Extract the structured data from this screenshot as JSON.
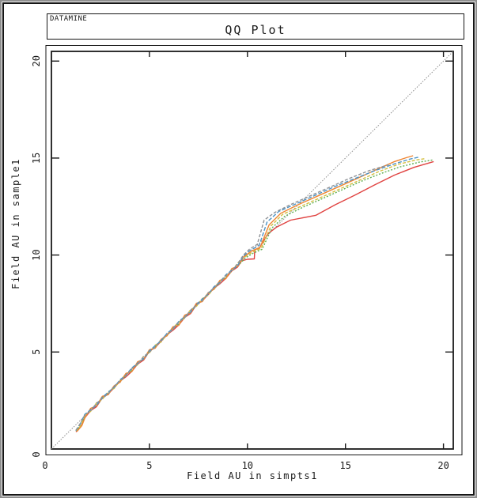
{
  "window": {
    "outer_border_color": "#8f8f8f",
    "inner_border_color": "#161616",
    "background": "#ffffff"
  },
  "header": {
    "app_label": "DATAMINE",
    "title": "QQ Plot"
  },
  "chart_data": {
    "type": "line",
    "title": "QQ Plot",
    "xlabel": "Field AU in simpts1",
    "ylabel": "Field AU in sample1",
    "xlim": [
      0,
      20.5
    ],
    "ylim": [
      0,
      20.5
    ],
    "grid": false,
    "legend": "none",
    "axis_color": "#1a1a1a",
    "frame_color": "#161616",
    "x_ticks": {
      "values": [
        0,
        5,
        10,
        15,
        20
      ],
      "labels": [
        "0",
        "5",
        "10",
        "15",
        "20"
      ]
    },
    "y_ticks": {
      "values": [
        0,
        5,
        10,
        15,
        20
      ],
      "labels": [
        "0",
        "5",
        "10",
        "15",
        "20"
      ]
    },
    "reference_line": {
      "name": "y-equals-x-reference",
      "color": "#8c8c8c",
      "dash": "1.5 1.8",
      "width": 1,
      "points": [
        [
          0,
          0
        ],
        [
          20.5,
          20.5
        ]
      ]
    },
    "series": [
      {
        "name": "series-red",
        "color": "#e04341",
        "dash": "",
        "width": 1.4,
        "points": [
          [
            1.25,
            0.88
          ],
          [
            1.5,
            1.15
          ],
          [
            1.7,
            1.6
          ],
          [
            2.0,
            1.98
          ],
          [
            2.3,
            2.18
          ],
          [
            2.6,
            2.64
          ],
          [
            2.9,
            2.84
          ],
          [
            3.2,
            3.16
          ],
          [
            3.5,
            3.5
          ],
          [
            3.8,
            3.72
          ],
          [
            4.1,
            4.0
          ],
          [
            4.4,
            4.38
          ],
          [
            4.7,
            4.58
          ],
          [
            5.0,
            5.04
          ],
          [
            5.3,
            5.24
          ],
          [
            5.6,
            5.56
          ],
          [
            5.9,
            5.9
          ],
          [
            6.2,
            6.12
          ],
          [
            6.5,
            6.4
          ],
          [
            6.8,
            6.78
          ],
          [
            7.1,
            6.98
          ],
          [
            7.4,
            7.44
          ],
          [
            7.7,
            7.64
          ],
          [
            8.0,
            7.96
          ],
          [
            8.3,
            8.3
          ],
          [
            8.6,
            8.52
          ],
          [
            8.9,
            8.8
          ],
          [
            9.2,
            9.18
          ],
          [
            9.5,
            9.38
          ],
          [
            9.7,
            9.7
          ],
          [
            10.0,
            9.78
          ],
          [
            10.35,
            9.8
          ],
          [
            10.37,
            10.28
          ],
          [
            10.6,
            10.35
          ],
          [
            11.05,
            11.1
          ],
          [
            11.5,
            11.45
          ],
          [
            12.2,
            11.8
          ],
          [
            13.5,
            12.05
          ],
          [
            14.5,
            12.6
          ],
          [
            15.5,
            13.1
          ],
          [
            16.5,
            13.62
          ],
          [
            17.5,
            14.12
          ],
          [
            18.5,
            14.52
          ],
          [
            19.5,
            14.82
          ]
        ]
      },
      {
        "name": "series-green",
        "color": "#5faf52",
        "dash": "2 2",
        "width": 1.4,
        "points": [
          [
            1.25,
            0.93
          ],
          [
            1.48,
            1.2
          ],
          [
            1.7,
            1.65
          ],
          [
            2.0,
            2.04
          ],
          [
            2.3,
            2.23
          ],
          [
            2.6,
            2.63
          ],
          [
            2.9,
            2.87
          ],
          [
            3.2,
            3.25
          ],
          [
            3.5,
            3.44
          ],
          [
            3.8,
            3.82
          ],
          [
            4.1,
            4.05
          ],
          [
            4.4,
            4.44
          ],
          [
            4.7,
            4.63
          ],
          [
            5.0,
            5.03
          ],
          [
            5.3,
            5.27
          ],
          [
            5.6,
            5.65
          ],
          [
            5.9,
            5.84
          ],
          [
            6.2,
            6.22
          ],
          [
            6.5,
            6.45
          ],
          [
            6.8,
            6.84
          ],
          [
            7.1,
            7.03
          ],
          [
            7.4,
            7.43
          ],
          [
            7.7,
            7.67
          ],
          [
            8.0,
            8.05
          ],
          [
            8.3,
            8.24
          ],
          [
            8.6,
            8.62
          ],
          [
            8.9,
            8.85
          ],
          [
            9.2,
            9.24
          ],
          [
            9.5,
            9.43
          ],
          [
            9.9,
            9.85
          ],
          [
            10.3,
            10.1
          ],
          [
            10.75,
            10.3
          ],
          [
            11.25,
            11.4
          ],
          [
            11.9,
            12.0
          ],
          [
            12.8,
            12.45
          ],
          [
            13.8,
            12.9
          ],
          [
            14.8,
            13.35
          ],
          [
            15.8,
            13.8
          ],
          [
            16.8,
            14.2
          ],
          [
            17.8,
            14.55
          ],
          [
            18.8,
            14.8
          ],
          [
            19.45,
            14.9
          ]
        ]
      },
      {
        "name": "series-gold",
        "color": "#d5bf3f",
        "dash": "4 2",
        "width": 1.4,
        "points": [
          [
            1.27,
            0.93
          ],
          [
            1.5,
            1.22
          ],
          [
            1.7,
            1.74
          ],
          [
            2.0,
            1.94
          ],
          [
            2.3,
            2.38
          ],
          [
            2.6,
            2.56
          ],
          [
            2.9,
            2.96
          ],
          [
            3.2,
            3.12
          ],
          [
            3.5,
            3.52
          ],
          [
            3.8,
            3.85
          ],
          [
            4.1,
            4.14
          ],
          [
            4.4,
            4.34
          ],
          [
            4.7,
            4.78
          ],
          [
            5.0,
            4.96
          ],
          [
            5.3,
            5.36
          ],
          [
            5.6,
            5.52
          ],
          [
            5.9,
            5.92
          ],
          [
            6.2,
            6.25
          ],
          [
            6.5,
            6.54
          ],
          [
            6.8,
            6.74
          ],
          [
            7.1,
            7.18
          ],
          [
            7.4,
            7.36
          ],
          [
            7.7,
            7.76
          ],
          [
            8.0,
            7.92
          ],
          [
            8.3,
            8.32
          ],
          [
            8.6,
            8.65
          ],
          [
            8.9,
            8.94
          ],
          [
            9.2,
            9.14
          ],
          [
            9.5,
            9.58
          ],
          [
            9.85,
            9.9
          ],
          [
            10.25,
            10.15
          ],
          [
            10.7,
            10.35
          ],
          [
            11.2,
            11.5
          ],
          [
            11.8,
            12.1
          ],
          [
            12.7,
            12.5
          ],
          [
            13.7,
            12.95
          ],
          [
            14.7,
            13.4
          ],
          [
            15.7,
            13.85
          ],
          [
            16.7,
            14.3
          ],
          [
            17.7,
            14.68
          ],
          [
            18.6,
            14.9
          ],
          [
            19.05,
            14.97
          ]
        ]
      },
      {
        "name": "series-orange",
        "color": "#ee8634",
        "dash": "",
        "width": 1.4,
        "points": [
          [
            1.3,
            0.9
          ],
          [
            1.55,
            1.2
          ],
          [
            1.7,
            1.58
          ],
          [
            2.0,
            2.1
          ],
          [
            2.3,
            2.22
          ],
          [
            2.6,
            2.72
          ],
          [
            2.9,
            2.8
          ],
          [
            3.2,
            3.26
          ],
          [
            3.5,
            3.44
          ],
          [
            3.8,
            3.9
          ],
          [
            4.1,
            3.98
          ],
          [
            4.4,
            4.5
          ],
          [
            4.7,
            4.62
          ],
          [
            5.0,
            5.12
          ],
          [
            5.3,
            5.2
          ],
          [
            5.6,
            5.66
          ],
          [
            5.9,
            5.84
          ],
          [
            6.2,
            6.3
          ],
          [
            6.5,
            6.38
          ],
          [
            6.8,
            6.9
          ],
          [
            7.1,
            7.02
          ],
          [
            7.4,
            7.52
          ],
          [
            7.7,
            7.6
          ],
          [
            8.0,
            8.06
          ],
          [
            8.3,
            8.24
          ],
          [
            8.6,
            8.7
          ],
          [
            8.9,
            8.78
          ],
          [
            9.2,
            9.3
          ],
          [
            9.5,
            9.42
          ],
          [
            9.8,
            9.9
          ],
          [
            10.2,
            10.2
          ],
          [
            10.65,
            10.4
          ],
          [
            11.1,
            11.55
          ],
          [
            11.7,
            12.15
          ],
          [
            12.6,
            12.6
          ],
          [
            13.6,
            13.05
          ],
          [
            14.6,
            13.5
          ],
          [
            15.6,
            13.95
          ],
          [
            16.6,
            14.42
          ],
          [
            17.5,
            14.82
          ],
          [
            18.1,
            15.02
          ],
          [
            18.45,
            15.12
          ]
        ]
      },
      {
        "name": "series-blue",
        "color": "#4d93c6",
        "dash": "5 2.2",
        "width": 1.4,
        "points": [
          [
            1.25,
            0.95
          ],
          [
            1.45,
            1.25
          ],
          [
            1.7,
            1.78
          ],
          [
            2.0,
            2.02
          ],
          [
            2.3,
            2.26
          ],
          [
            2.6,
            2.66
          ],
          [
            2.9,
            2.93
          ],
          [
            3.2,
            3.18
          ],
          [
            3.5,
            3.57
          ],
          [
            3.8,
            3.8
          ],
          [
            4.1,
            4.18
          ],
          [
            4.4,
            4.42
          ],
          [
            4.7,
            4.66
          ],
          [
            5.0,
            5.06
          ],
          [
            5.3,
            5.33
          ],
          [
            5.6,
            5.58
          ],
          [
            5.9,
            5.97
          ],
          [
            6.2,
            6.2
          ],
          [
            6.5,
            6.58
          ],
          [
            6.8,
            6.82
          ],
          [
            7.1,
            7.06
          ],
          [
            7.4,
            7.46
          ],
          [
            7.7,
            7.73
          ],
          [
            8.0,
            7.98
          ],
          [
            8.3,
            8.37
          ],
          [
            8.6,
            8.6
          ],
          [
            8.9,
            8.98
          ],
          [
            9.2,
            9.22
          ],
          [
            9.5,
            9.46
          ],
          [
            9.8,
            9.95
          ],
          [
            10.15,
            10.25
          ],
          [
            10.6,
            10.5
          ],
          [
            11.0,
            11.7
          ],
          [
            11.6,
            12.25
          ],
          [
            12.5,
            12.65
          ],
          [
            13.5,
            13.1
          ],
          [
            14.5,
            13.55
          ],
          [
            15.5,
            13.95
          ],
          [
            16.5,
            14.35
          ],
          [
            17.5,
            14.7
          ],
          [
            18.3,
            14.95
          ],
          [
            18.75,
            15.05
          ]
        ]
      },
      {
        "name": "series-gray",
        "color": "#8f9296",
        "dash": "4 2.2",
        "width": 1.4,
        "points": [
          [
            1.25,
            0.97
          ],
          [
            1.45,
            1.28
          ],
          [
            1.7,
            1.75
          ],
          [
            2.0,
            1.97
          ],
          [
            2.3,
            2.36
          ],
          [
            2.6,
            2.6
          ],
          [
            2.9,
            2.85
          ],
          [
            3.2,
            3.24
          ],
          [
            3.5,
            3.52
          ],
          [
            3.8,
            3.76
          ],
          [
            4.1,
            4.15
          ],
          [
            4.4,
            4.37
          ],
          [
            4.7,
            4.76
          ],
          [
            5.0,
            5.0
          ],
          [
            5.3,
            5.25
          ],
          [
            5.6,
            5.64
          ],
          [
            5.9,
            5.92
          ],
          [
            6.2,
            6.16
          ],
          [
            6.5,
            6.55
          ],
          [
            6.8,
            6.77
          ],
          [
            7.1,
            7.16
          ],
          [
            7.4,
            7.4
          ],
          [
            7.7,
            7.65
          ],
          [
            8.0,
            8.04
          ],
          [
            8.3,
            8.32
          ],
          [
            8.6,
            8.56
          ],
          [
            8.9,
            8.95
          ],
          [
            9.2,
            9.17
          ],
          [
            9.5,
            9.56
          ],
          [
            9.8,
            10.0
          ],
          [
            10.1,
            10.3
          ],
          [
            10.5,
            10.55
          ],
          [
            10.85,
            11.8
          ],
          [
            11.4,
            12.2
          ],
          [
            12.2,
            12.6
          ],
          [
            13.2,
            13.05
          ],
          [
            14.2,
            13.5
          ],
          [
            15.2,
            13.95
          ],
          [
            16.2,
            14.35
          ],
          [
            17.2,
            14.65
          ]
        ]
      }
    ]
  }
}
